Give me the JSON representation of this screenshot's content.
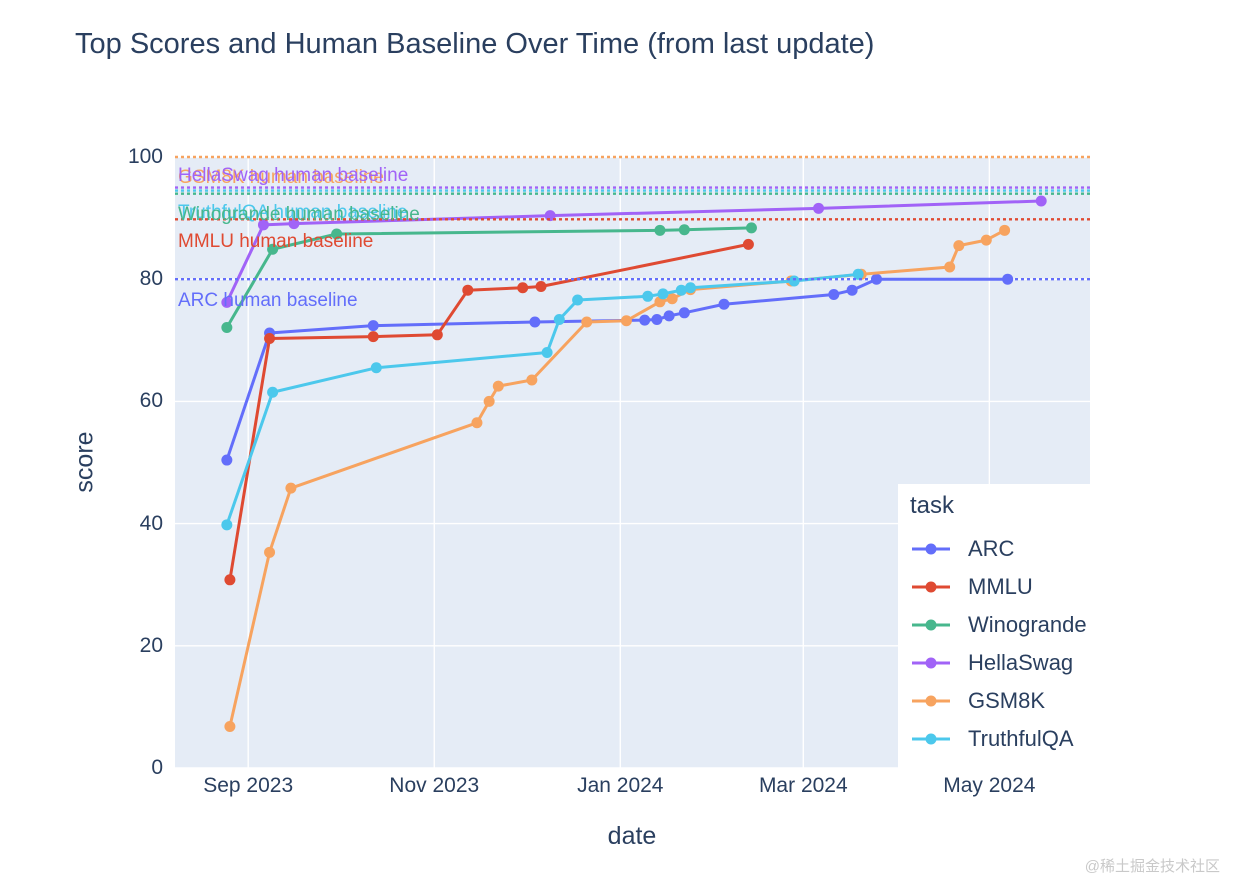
{
  "watermark": "@稀土掘金技术社区",
  "legend": {
    "title": "task"
  },
  "chart_data": {
    "type": "line",
    "title": "Top Scores and Human Baseline Over Time (from last update)",
    "xlabel": "date",
    "ylabel": "score",
    "ylim": [
      0,
      100
    ],
    "grid": true,
    "legend_position": "inside-bottom-right",
    "plot_bg_color": "#e5ecf6",
    "text_color": "#2a3f5f",
    "yticks": [
      {
        "label": "0",
        "value": 0
      },
      {
        "label": "20",
        "value": 20
      },
      {
        "label": "40",
        "value": 40
      },
      {
        "label": "60",
        "value": 60
      },
      {
        "label": "80",
        "value": 80
      },
      {
        "label": "100",
        "value": 100
      }
    ],
    "xticks": [
      {
        "label": "Sep 2023",
        "date": "2023-09-01"
      },
      {
        "label": "Nov 2023",
        "date": "2023-11-01"
      },
      {
        "label": "Jan 2024",
        "date": "2024-01-01"
      },
      {
        "label": "Mar 2024",
        "date": "2024-03-01"
      },
      {
        "label": "May 2024",
        "date": "2024-05-01"
      }
    ],
    "series": [
      {
        "name": "ARC",
        "color": "#636efa",
        "points": [
          [
            "2023-08-25",
            50.4
          ],
          [
            "2023-09-08",
            71.2
          ],
          [
            "2023-10-12",
            72.4
          ],
          [
            "2023-12-04",
            73.0
          ],
          [
            "2024-01-09",
            73.3
          ],
          [
            "2024-01-13",
            73.4
          ],
          [
            "2024-01-17",
            74.0
          ],
          [
            "2024-01-22",
            74.5
          ],
          [
            "2024-02-04",
            75.9
          ],
          [
            "2024-03-11",
            77.5
          ],
          [
            "2024-03-17",
            78.2
          ],
          [
            "2024-03-25",
            80.0
          ],
          [
            "2024-05-07",
            80.0
          ]
        ]
      },
      {
        "name": "MMLU",
        "color": "#df4a32",
        "points": [
          [
            "2023-08-26",
            30.8
          ],
          [
            "2023-09-08",
            70.3
          ],
          [
            "2023-10-12",
            70.6
          ],
          [
            "2023-11-02",
            70.9
          ],
          [
            "2023-11-12",
            78.2
          ],
          [
            "2023-11-30",
            78.6
          ],
          [
            "2023-12-06",
            78.8
          ],
          [
            "2024-02-12",
            85.7
          ]
        ]
      },
      {
        "name": "Winogrande",
        "color": "#47b78d",
        "points": [
          [
            "2023-08-25",
            72.1
          ],
          [
            "2023-09-09",
            84.9
          ],
          [
            "2023-09-30",
            87.4
          ],
          [
            "2024-01-14",
            88.0
          ],
          [
            "2024-01-22",
            88.1
          ],
          [
            "2024-02-13",
            88.4
          ]
        ]
      },
      {
        "name": "HellaSwag",
        "color": "#a163f7",
        "points": [
          [
            "2023-08-25",
            76.2
          ],
          [
            "2023-09-06",
            88.9
          ],
          [
            "2023-09-16",
            89.1
          ],
          [
            "2023-12-09",
            90.4
          ],
          [
            "2024-03-06",
            91.6
          ],
          [
            "2024-05-18",
            92.8
          ]
        ]
      },
      {
        "name": "GSM8K",
        "color": "#f7a35f",
        "points": [
          [
            "2023-08-26",
            6.8
          ],
          [
            "2023-09-08",
            35.3
          ],
          [
            "2023-09-15",
            45.8
          ],
          [
            "2023-11-15",
            56.5
          ],
          [
            "2023-11-19",
            60.0
          ],
          [
            "2023-11-22",
            62.5
          ],
          [
            "2023-12-03",
            63.5
          ],
          [
            "2023-12-21",
            73.0
          ],
          [
            "2024-01-03",
            73.2
          ],
          [
            "2024-01-14",
            76.3
          ],
          [
            "2024-01-18",
            76.8
          ],
          [
            "2024-01-24",
            78.3
          ],
          [
            "2024-02-26",
            79.7
          ],
          [
            "2024-03-20",
            80.8
          ],
          [
            "2024-04-18",
            82.0
          ],
          [
            "2024-04-21",
            85.5
          ],
          [
            "2024-04-30",
            86.4
          ],
          [
            "2024-05-06",
            88.0
          ]
        ]
      },
      {
        "name": "TruthfulQA",
        "color": "#4cc8ec",
        "points": [
          [
            "2023-08-25",
            39.8
          ],
          [
            "2023-09-09",
            61.5
          ],
          [
            "2023-10-13",
            65.5
          ],
          [
            "2023-12-08",
            68.0
          ],
          [
            "2023-12-12",
            73.4
          ],
          [
            "2023-12-18",
            76.6
          ],
          [
            "2024-01-10",
            77.2
          ],
          [
            "2024-01-15",
            77.6
          ],
          [
            "2024-01-21",
            78.2
          ],
          [
            "2024-01-24",
            78.6
          ],
          [
            "2024-02-27",
            79.7
          ],
          [
            "2024-03-19",
            80.8
          ]
        ]
      }
    ],
    "baselines": [
      {
        "task": "GSM8K",
        "label": "GSM8K human baseline",
        "value": 100,
        "color": "#f7a35f"
      },
      {
        "task": "HellaSwag",
        "label": "HellaSwag human baseline",
        "value": 95.0,
        "color": "#a163f7"
      },
      {
        "task": "TruthfulQA",
        "label": "TruthfulQA human baseline",
        "value": 94.5,
        "color": "#4cc8ec"
      },
      {
        "task": "Winogrande",
        "label": "Winogrande human baseline",
        "value": 94.0,
        "color": "#47b78d"
      },
      {
        "task": "MMLU",
        "label": "MMLU human baseline",
        "value": 89.8,
        "color": "#df4a32"
      },
      {
        "task": "ARC",
        "label": "ARC human baseline",
        "value": 80.0,
        "color": "#636efa"
      }
    ]
  }
}
